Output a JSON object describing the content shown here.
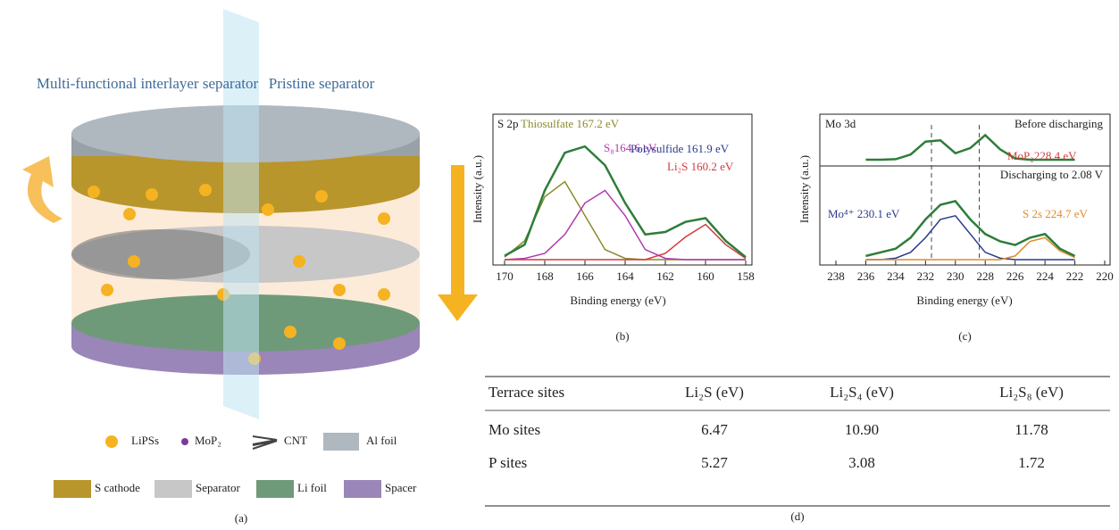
{
  "illustration": {
    "labels": [
      "Multi-functional interlayer separator",
      "Pristine separator"
    ],
    "legend": [
      "LiPSs",
      "MoP₂",
      "CNT",
      "Al foil",
      "S cathode",
      "Separator",
      "Li foil",
      "Spacer"
    ],
    "panel_label": "(a)"
  },
  "chart_data": [
    {
      "type": "line",
      "title": "S 2p",
      "x_label": "Binding energy (eV)",
      "y_label": "Intensity (a.u.)",
      "x": [
        170,
        169,
        168,
        167,
        166,
        165,
        164,
        163,
        162,
        161,
        160,
        159,
        158
      ],
      "xlim": [
        170,
        158
      ],
      "xticks": [
        170,
        168,
        166,
        164,
        162,
        160,
        158
      ],
      "ylim": [
        0,
        1
      ],
      "series": [
        {
          "color": "#8a8a2a",
          "values": [
            0.02,
            0.15,
            0.5,
            0.62,
            0.35,
            0.08,
            0.01,
            0,
            0,
            0,
            0,
            0,
            0
          ]
        },
        {
          "color": "#b03ab0",
          "values": [
            0,
            0.01,
            0.05,
            0.2,
            0.45,
            0.55,
            0.35,
            0.08,
            0.01,
            0,
            0,
            0,
            0
          ]
        },
        {
          "color": "#d23a3a",
          "values": [
            0,
            0,
            0,
            0,
            0,
            0,
            0,
            0,
            0.05,
            0.18,
            0.28,
            0.12,
            0.01
          ]
        },
        {
          "color": "#2e7d3a",
          "values": [
            0.03,
            0.12,
            0.55,
            0.85,
            0.9,
            0.75,
            0.45,
            0.2,
            0.22,
            0.3,
            0.33,
            0.15,
            0.02
          ]
        }
      ],
      "annotations": [
        "Thiosulfate 167.2 eV",
        "S₈164.6 eV",
        "Polysulfide 161.9 eV",
        "Li₂S 160.2 eV"
      ],
      "panel_label": "(b)"
    },
    {
      "type": "line",
      "title": "Mo 3d",
      "y_label": "Intensity (a.u.)",
      "x": [
        236,
        235,
        234,
        233,
        232,
        231,
        230,
        229,
        228,
        227,
        226,
        225,
        224,
        223,
        222
      ],
      "xlim": [
        238,
        220
      ],
      "ylim": [
        0,
        1
      ],
      "vlines": [
        231.6,
        228.4
      ],
      "series": [
        {
          "color": "#2e7d3a",
          "values": [
            0,
            0,
            0.02,
            0.2,
            0.7,
            0.75,
            0.25,
            0.45,
            0.95,
            0.4,
            0.05,
            0,
            0,
            0,
            0
          ]
        }
      ],
      "annotations": [
        "Before discharging",
        "MoP₂228.4 eV"
      ]
    },
    {
      "type": "line",
      "x_label": "Binding energy (eV)",
      "x": [
        236,
        235,
        234,
        233,
        232,
        231,
        230,
        229,
        228,
        227,
        226,
        225,
        224,
        223,
        222
      ],
      "xlim": [
        238,
        220
      ],
      "xticks": [
        238,
        236,
        234,
        232,
        230,
        228,
        226,
        224,
        222,
        220
      ],
      "ylim": [
        0,
        1
      ],
      "series": [
        {
          "color": "#2a3a8a",
          "values": [
            0,
            0,
            0.02,
            0.1,
            0.3,
            0.55,
            0.6,
            0.35,
            0.1,
            0.02,
            0,
            0,
            0,
            0,
            0
          ]
        },
        {
          "color": "#e08a2a",
          "values": [
            0,
            0,
            0,
            0,
            0,
            0,
            0,
            0,
            0,
            0,
            0.05,
            0.25,
            0.3,
            0.12,
            0.03
          ]
        },
        {
          "color": "#2e7d3a",
          "values": [
            0.05,
            0.1,
            0.15,
            0.3,
            0.55,
            0.75,
            0.8,
            0.55,
            0.35,
            0.25,
            0.2,
            0.3,
            0.35,
            0.15,
            0.05
          ]
        }
      ],
      "annotations": [
        "Discharging to 2.08 V",
        "Mo⁴⁺ 230.1 eV",
        "S 2s 224.7 eV"
      ],
      "panel_label": "(c)"
    }
  ],
  "table": {
    "header": [
      "Terrace sites",
      "Li₂S (eV)",
      "Li₂S₄ (eV)",
      "Li₂S₈ (eV)"
    ],
    "rows": [
      [
        "Mo sites",
        "6.47",
        "10.90",
        "11.78"
      ],
      [
        "P sites",
        "5.27",
        "3.08",
        "1.72"
      ]
    ],
    "panel_label": "(d)"
  }
}
